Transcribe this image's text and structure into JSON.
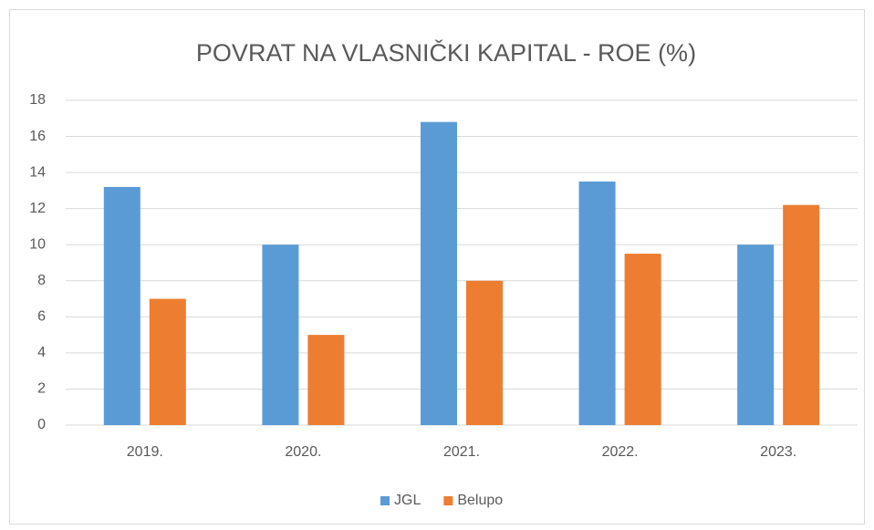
{
  "chart_data": {
    "type": "bar",
    "title": "POVRAT NA VLASNIČKI KAPITAL - ROE (%)",
    "categories": [
      "2019.",
      "2020.",
      "2021.",
      "2022.",
      "2023."
    ],
    "series": [
      {
        "name": "JGL",
        "color": "#5b9bd5",
        "values": [
          13.2,
          10,
          16.8,
          13.5,
          10
        ]
      },
      {
        "name": "Belupo",
        "color": "#ed7d31",
        "values": [
          7,
          5,
          8,
          9.5,
          12.2
        ]
      }
    ],
    "ylim": [
      0,
      18
    ],
    "yticks": [
      0,
      2,
      4,
      6,
      8,
      10,
      12,
      14,
      16,
      18
    ],
    "grid": true,
    "legend": "bottom"
  }
}
